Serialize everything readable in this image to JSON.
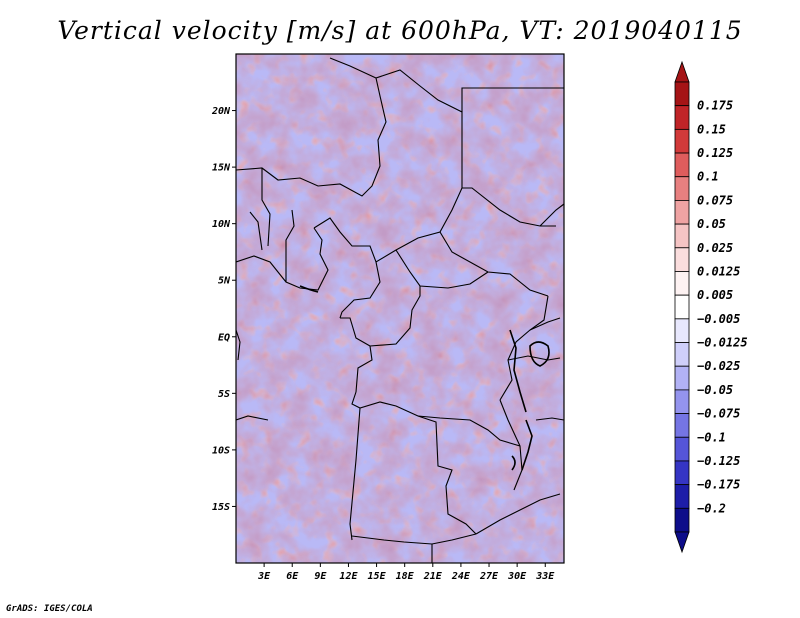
{
  "title": "Vertical velocity [m/s] at 600hPa, VT: 2019040115",
  "footer": "GrADS: IGES/COLA",
  "map": {
    "region": "Central Africa",
    "lon_range": [
      0,
      35
    ],
    "lat_range": [
      -20,
      25
    ],
    "lat_ticks": [
      "20N",
      "15N",
      "10N",
      "5N",
      "EQ",
      "5S",
      "10S",
      "15S"
    ],
    "lat_values": [
      20,
      15,
      10,
      5,
      0,
      -5,
      -10,
      -15
    ],
    "lon_ticks": [
      "3E",
      "6E",
      "9E",
      "12E",
      "15E",
      "18E",
      "21E",
      "24E",
      "27E",
      "30E",
      "33E"
    ],
    "lon_values": [
      3,
      6,
      9,
      12,
      15,
      18,
      21,
      24,
      27,
      30,
      33
    ]
  },
  "colorbar": {
    "labels": [
      "0.175",
      "0.15",
      "0.125",
      "0.1",
      "0.075",
      "0.05",
      "0.025",
      "0.0125",
      "0.005",
      "−0.005",
      "−0.0125",
      "−0.025",
      "−0.05",
      "−0.075",
      "−0.1",
      "−0.125",
      "−0.175",
      "−0.2"
    ],
    "colors": [
      "#a51416",
      "#c02428",
      "#d23a3a",
      "#df5d5d",
      "#e88080",
      "#efa3a3",
      "#f5c4c4",
      "#fadddd",
      "#fdf2f2",
      "#ffffff",
      "#e8e8fd",
      "#cfcffa",
      "#b2b2f5",
      "#9494ee",
      "#7575e4",
      "#5555d8",
      "#3535c4",
      "#1d1da8",
      "#0d0d8a"
    ]
  }
}
